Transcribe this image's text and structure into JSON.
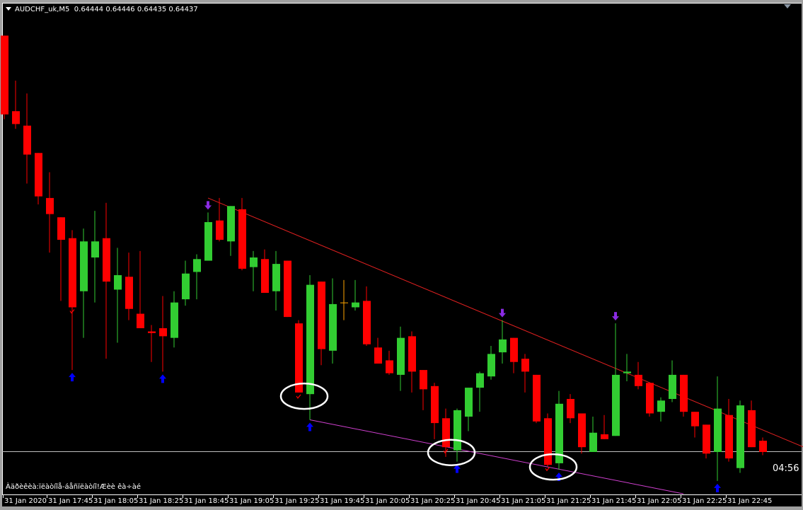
{
  "header": {
    "symbol": "AUDCHF_uk,M5",
    "ohlc": "0.64444 0.64446 0.64435 0.64437"
  },
  "bottom_note": "Àäðèêèà:ïëàòíîå-áåñïëàòíî!Æèè êà÷àé",
  "timer": "04:56",
  "colors": {
    "background": "#000000",
    "bull": "#32cd32",
    "bear": "#ff0000",
    "doji_special": "#ffa500",
    "resistance_line": "#e02020",
    "support_line": "#d040d0",
    "bid_line": "#c0c0c0",
    "up_arrow": "#0000ff",
    "down_arrow": "#8a2be2",
    "circle": "#ffffff",
    "check": "#ff0000"
  },
  "chart_data": {
    "type": "candlestick",
    "date": "31 Jan 2020",
    "timeframe": "M5",
    "bid": 0.64437,
    "candles": [
      [
        "17:25",
        0.64696,
        0.64696,
        0.64644,
        0.64647
      ],
      [
        "17:30",
        0.64649,
        0.64668,
        0.64638,
        0.64641
      ],
      [
        "17:35",
        0.6464,
        0.6466,
        0.64604,
        0.64622
      ],
      [
        "17:40",
        0.64623,
        0.64623,
        0.64591,
        0.64596
      ],
      [
        "17:45",
        0.64595,
        0.64611,
        0.64561,
        0.64585
      ],
      [
        "17:50",
        0.64583,
        0.64583,
        0.64531,
        0.64569
      ],
      [
        "17:55",
        0.6457,
        0.64575,
        0.64488,
        0.64527
      ],
      [
        "18:00",
        0.64537,
        0.64576,
        0.64508,
        0.64568
      ],
      [
        "18:05",
        0.64558,
        0.64587,
        0.6453,
        0.64568
      ],
      [
        "18:10",
        0.6457,
        0.64592,
        0.64495,
        0.64543
      ],
      [
        "18:15",
        0.64538,
        0.64564,
        0.64505,
        0.64547
      ],
      [
        "18:20",
        0.64546,
        0.64561,
        0.64519,
        0.64526
      ],
      [
        "18:25",
        0.64523,
        0.64562,
        0.64514,
        0.64514
      ],
      [
        "18:30",
        0.64512,
        0.64516,
        0.64493,
        0.64511
      ],
      [
        "18:35",
        0.64514,
        0.64534,
        0.64487,
        0.64509
      ],
      [
        "18:40",
        0.64508,
        0.64537,
        0.64502,
        0.6453
      ],
      [
        "18:45",
        0.64532,
        0.64556,
        0.64528,
        0.64548
      ],
      [
        "18:50",
        0.64549,
        0.6456,
        0.64532,
        0.64557
      ],
      [
        "18:55",
        0.64556,
        0.64586,
        0.64556,
        0.6458
      ],
      [
        "19:00",
        0.64581,
        0.64595,
        0.64568,
        0.64569
      ],
      [
        "19:05",
        0.64568,
        0.6459,
        0.64559,
        0.6459
      ],
      [
        "19:10",
        0.64588,
        0.64595,
        0.6455,
        0.64551
      ],
      [
        "19:15",
        0.64552,
        0.64562,
        0.64537,
        0.64558
      ],
      [
        "19:20",
        0.64557,
        0.64563,
        0.64536,
        0.64536
      ],
      [
        "19:25",
        0.64537,
        0.64562,
        0.64525,
        0.64554
      ],
      [
        "19:30",
        0.64556,
        0.64556,
        0.64521,
        0.64521
      ],
      [
        "19:35",
        0.64517,
        0.64519,
        0.64474,
        0.64474
      ],
      [
        "19:40",
        0.64473,
        0.64547,
        0.64457,
        0.64541
      ],
      [
        "19:45",
        0.64543,
        0.64543,
        0.64491,
        0.64501
      ],
      [
        "19:50",
        0.645,
        0.64545,
        0.64492,
        0.64529
      ],
      [
        "19:55",
        0.6453,
        0.64544,
        0.64519,
        0.6453
      ],
      [
        "20:00",
        0.64527,
        0.64544,
        0.64525,
        0.6453
      ],
      [
        "20:05",
        0.64531,
        0.6454,
        0.64503,
        0.64504
      ],
      [
        "20:10",
        0.64502,
        0.64508,
        0.64492,
        0.64492
      ],
      [
        "20:15",
        0.64494,
        0.645,
        0.64485,
        0.64486
      ],
      [
        "20:20",
        0.64485,
        0.64515,
        0.64475,
        0.64508
      ],
      [
        "20:25",
        0.64509,
        0.64512,
        0.64474,
        0.64487
      ],
      [
        "20:30",
        0.64488,
        0.64488,
        0.64463,
        0.64476
      ],
      [
        "20:35",
        0.64478,
        0.6448,
        0.64445,
        0.64455
      ],
      [
        "20:40",
        0.64458,
        0.64464,
        0.64434,
        0.6444
      ],
      [
        "20:45",
        0.64438,
        0.64464,
        0.64431,
        0.64463
      ],
      [
        "20:50",
        0.64459,
        0.64477,
        0.6445,
        0.64477
      ],
      [
        "20:55",
        0.64477,
        0.64487,
        0.64462,
        0.64486
      ],
      [
        "21:00",
        0.64484,
        0.64503,
        0.64482,
        0.64498
      ],
      [
        "21:05",
        0.64499,
        0.64519,
        0.64492,
        0.64507
      ],
      [
        "21:10",
        0.64508,
        0.64508,
        0.64486,
        0.64493
      ],
      [
        "21:15",
        0.64495,
        0.64498,
        0.64474,
        0.64487
      ],
      [
        "21:20",
        0.64485,
        0.64485,
        0.64455,
        0.64456
      ],
      [
        "21:25",
        0.64458,
        0.64461,
        0.64428,
        0.64429
      ],
      [
        "21:30",
        0.6443,
        0.64475,
        0.64426,
        0.64467
      ],
      [
        "21:35",
        0.6447,
        0.64473,
        0.64455,
        0.64458
      ],
      [
        "21:40",
        0.64461,
        0.64461,
        0.64436,
        0.6444
      ],
      [
        "21:45",
        0.64437,
        0.64459,
        0.64437,
        0.64449
      ],
      [
        "21:50",
        0.64448,
        0.6446,
        0.64445,
        0.64445
      ],
      [
        "21:55",
        0.64447,
        0.64517,
        0.64447,
        0.64485
      ],
      [
        "22:00",
        0.64486,
        0.64498,
        0.64481,
        0.64487
      ],
      [
        "22:05",
        0.64485,
        0.64493,
        0.64476,
        0.64478
      ],
      [
        "22:10",
        0.6448,
        0.6448,
        0.64459,
        0.64461
      ],
      [
        "22:15",
        0.64462,
        0.64471,
        0.64456,
        0.64469
      ],
      [
        "22:20",
        0.6447,
        0.64494,
        0.64468,
        0.64485
      ],
      [
        "22:25",
        0.64485,
        0.64485,
        0.64459,
        0.64462
      ],
      [
        "22:30",
        0.64462,
        0.64462,
        0.64446,
        0.64453
      ],
      [
        "22:35",
        0.64454,
        0.64454,
        0.64433,
        0.64436
      ],
      [
        "22:40",
        0.64437,
        0.64484,
        0.64419,
        0.64464
      ],
      [
        "22:45",
        0.6446,
        0.6447,
        0.64431,
        0.64433
      ],
      [
        "22:50",
        0.64427,
        0.64469,
        0.64424,
        0.64466
      ],
      [
        "22:55",
        0.64463,
        0.64469,
        0.6444,
        0.6444
      ],
      [
        "23:00",
        0.64444,
        0.64446,
        0.64435,
        0.64437
      ]
    ],
    "special_candles": [
      "19:55"
    ],
    "x_tick_labels": [
      "31 Jan 2020",
      "31 Jan 17:45",
      "31 Jan 18:05",
      "31 Jan 18:25",
      "31 Jan 18:45",
      "31 Jan 19:05",
      "31 Jan 19:25",
      "31 Jan 19:45",
      "31 Jan 20:05",
      "31 Jan 20:25",
      "31 Jan 20:45",
      "31 Jan 21:05",
      "31 Jan 21:25",
      "31 Jan 21:45",
      "31 Jan 22:05",
      "31 Jan 22:25",
      "31 Jan 22:45"
    ],
    "buy_arrows": [
      "17:55",
      "18:35",
      "19:40",
      "20:45",
      "21:30",
      "22:40"
    ],
    "sell_arrows": [
      "18:55",
      "21:05",
      "21:55"
    ],
    "check_marks": [
      "17:55",
      "19:35",
      "20:40",
      "21:25"
    ],
    "circled": [
      [
        "19:35",
        "19:40"
      ],
      [
        "20:40",
        "20:45"
      ],
      [
        "21:25",
        "21:30"
      ]
    ],
    "trendlines": [
      {
        "kind": "resistance",
        "from": [
          "18:55",
          0.64595
        ],
        "to": [
          "21:55",
          0.64489
        ],
        "extend": true
      },
      {
        "kind": "support",
        "from": [
          "19:40",
          0.64457
        ],
        "to": [
          "22:25",
          0.64411
        ],
        "extend": false
      }
    ]
  }
}
